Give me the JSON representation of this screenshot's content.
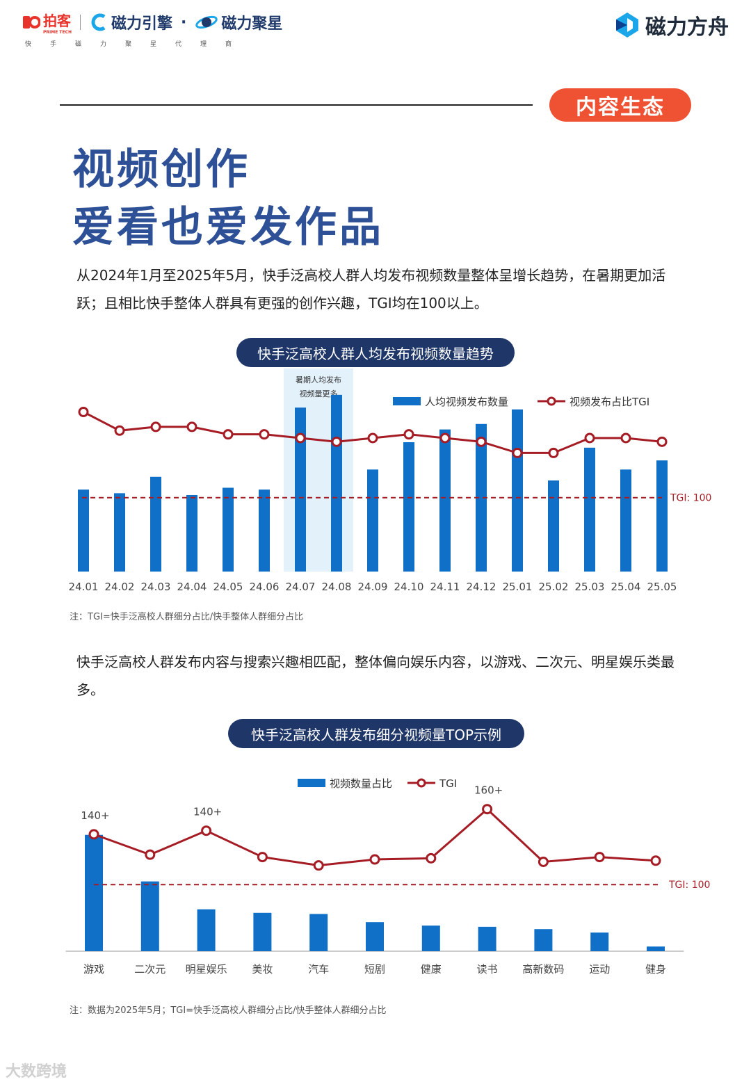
{
  "header": {
    "paike_logo": "拍客",
    "paike_sub": "PRIME TECH",
    "brand_engine": "磁力引擎",
    "brand_dot": "·",
    "brand_star": "磁力聚星",
    "brand_sub": "快手磁力聚星代理商",
    "brand_right": "磁力方舟"
  },
  "section_tag": "内容生态",
  "title_line1": "视频创作",
  "title_line2": "爱看也爱发作品",
  "paragraph1": "从2024年1月至2025年5月，快手泛高校人群人均发布视频数量整体呈增长趋势，在暑期更加活跃；且相比快手整体人群具有更强的创作兴趣，TGI均在100以上。",
  "paragraph2": "快手泛高校人群发布内容与搜索兴趣相匹配，整体偏向娱乐内容，以游戏、二次元、明星娱乐类最多。",
  "chart1_title": "快手泛高校人群人均发布视频数量趋势",
  "chart2_title": "快手泛高校人群发布细分视频量TOP示例",
  "note1": "注：TGI=快手泛高校人群细分占比/快手整体人群细分占比",
  "note2": "注：数据为2025年5月；TGI=快手泛高校人群细分占比/快手整体人群细分占比",
  "watermark": "大数跨境",
  "colors": {
    "bar": "#1070c8",
    "line": "#a51c24",
    "accent": "#ef5133",
    "navy": "#1f3668",
    "title_blue": "#2d5096"
  },
  "chart_data": [
    {
      "type": "bar+line",
      "title": "快手泛高校人群人均发布视频数量趋势",
      "categories": [
        "24.01",
        "24.02",
        "24.03",
        "24.04",
        "24.05",
        "24.06",
        "24.07",
        "24.08",
        "24.09",
        "24.10",
        "24.11",
        "24.12",
        "25.01",
        "25.02",
        "25.03",
        "25.04",
        "25.05"
      ],
      "series": [
        {
          "name": "人均视频发布数量",
          "kind": "bar",
          "values": [
            45,
            43,
            52,
            42,
            46,
            45,
            90,
            97,
            56,
            71,
            78,
            81,
            89,
            50,
            68,
            56,
            61
          ]
        },
        {
          "name": "视频发布占比TGI",
          "kind": "line",
          "values": [
            123,
            118,
            119,
            119,
            117,
            117,
            116,
            115,
            116,
            117,
            116,
            115,
            112,
            112,
            116,
            116,
            115
          ]
        }
      ],
      "bar_ylim": [
        0,
        100
      ],
      "tgi_ylim": [
        60,
        130
      ],
      "reference_line": {
        "value": 100,
        "label": "TGI: 100"
      },
      "highlight": {
        "range": [
          "24.07",
          "24.08"
        ],
        "label_line1": "暑期人均发布",
        "label_line2": "视频量更多"
      },
      "legend": "top-right"
    },
    {
      "type": "bar+line",
      "title": "快手泛高校人群发布细分视频量TOP示例",
      "categories": [
        "游戏",
        "二次元",
        "明星娱乐",
        "美妆",
        "汽车",
        "短剧",
        "健康",
        "读书",
        "高新数码",
        "运动",
        "健身"
      ],
      "series": [
        {
          "name": "视频数量占比",
          "kind": "bar",
          "values": [
            100,
            60,
            36,
            33,
            32,
            25,
            22,
            21,
            19,
            16,
            4
          ]
        },
        {
          "name": "TGI",
          "kind": "line",
          "values": [
            142,
            125,
            145,
            123,
            116,
            121,
            122,
            163,
            119,
            123,
            120
          ]
        }
      ],
      "bar_ylim": [
        0,
        110
      ],
      "tgi_ylim": [
        20,
        200
      ],
      "reference_line": {
        "value": 100,
        "label": "TGI: 100"
      },
      "data_labels": [
        {
          "category": "游戏",
          "text": "140+"
        },
        {
          "category": "明星娱乐",
          "text": "140+"
        },
        {
          "category": "读书",
          "text": "160+"
        }
      ],
      "legend": "top-center"
    }
  ]
}
